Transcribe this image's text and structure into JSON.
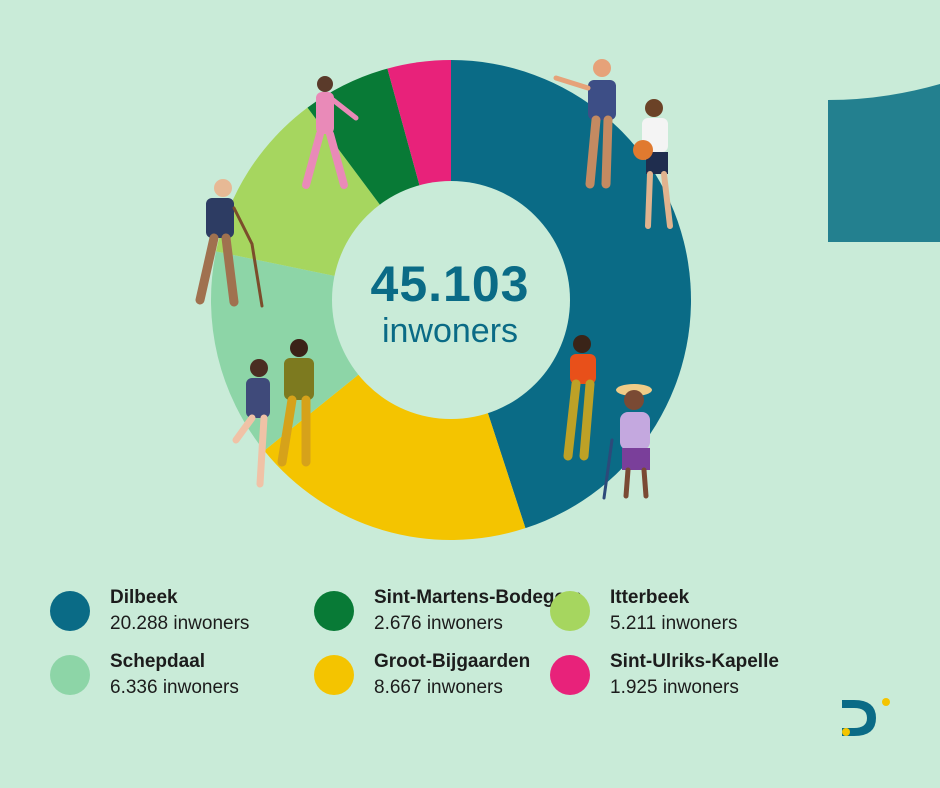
{
  "chart_data": {
    "type": "pie",
    "donut": true,
    "total_value": "45.103",
    "total_unit": "inwoners",
    "value_unit": "inwoners",
    "series": [
      {
        "name": "Dilbeek",
        "value": 20288,
        "label": "20.288 inwoners",
        "color": "#0a6b86"
      },
      {
        "name": "Groot-Bijgaarden",
        "value": 8667,
        "label": "8.667 inwoners",
        "color": "#f4c400"
      },
      {
        "name": "Schepdaal",
        "value": 6336,
        "label": "6.336 inwoners",
        "color": "#8dd5a7"
      },
      {
        "name": "Itterbeek",
        "value": 5211,
        "label": "5.211 inwoners",
        "color": "#a6d65f"
      },
      {
        "name": "Sint-Martens-Bodegem",
        "value": 2676,
        "label": "2.676 inwoners",
        "color": "#087a36"
      },
      {
        "name": "Sint-Ulriks-Kapelle",
        "value": 1925,
        "label": "1.925 inwoners",
        "color": "#e8227a"
      }
    ],
    "legend_placement": "bottom",
    "legend_order": [
      0,
      2,
      4,
      1,
      3,
      5
    ]
  },
  "colors": {
    "background": "#c9ebd8",
    "center_disc": "#c9ebd8",
    "accent_tab": "#23808f",
    "logo_dark": "#0a6b86",
    "logo_dot": "#f4c400"
  },
  "icons": {
    "logo": "dilbeek-d-logo",
    "illustrations": [
      "people-illustration"
    ]
  }
}
